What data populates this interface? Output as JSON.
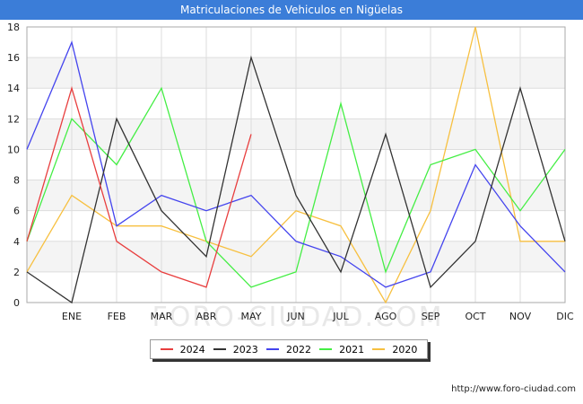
{
  "header": {
    "title": "Matriculaciones de Vehiculos en Nigüelas"
  },
  "watermark": "FORO-CIUDAD.COM",
  "source": "http://www.foro-ciudad.com",
  "chart_data": {
    "type": "line",
    "title": "Matriculaciones de Vehiculos en Nigüelas",
    "categories": [
      "",
      "ENE",
      "FEB",
      "MAR",
      "ABR",
      "MAY",
      "JUN",
      "JUL",
      "AGO",
      "SEP",
      "OCT",
      "NOV",
      "DIC"
    ],
    "ylim": [
      0,
      18
    ],
    "yticks": [
      0,
      2,
      4,
      6,
      8,
      10,
      12,
      14,
      16,
      18
    ],
    "grid": true,
    "legend_position": "bottom",
    "series": [
      {
        "name": "2024",
        "color": "#e83e3e",
        "values": [
          4,
          14,
          4,
          2,
          1,
          11,
          null,
          null,
          null,
          null,
          null,
          null,
          null
        ]
      },
      {
        "name": "2023",
        "color": "#333333",
        "values": [
          2,
          0,
          12,
          6,
          3,
          16,
          7,
          2,
          11,
          1,
          4,
          14,
          4
        ]
      },
      {
        "name": "2022",
        "color": "#4444ee",
        "values": [
          10,
          17,
          5,
          7,
          6,
          7,
          4,
          3,
          1,
          2,
          9,
          5,
          2
        ]
      },
      {
        "name": "2021",
        "color": "#44ee44",
        "values": [
          4,
          12,
          9,
          14,
          4,
          1,
          2,
          13,
          2,
          9,
          10,
          6,
          10
        ]
      },
      {
        "name": "2020",
        "color": "#f7c040",
        "values": [
          2,
          7,
          5,
          5,
          4,
          3,
          6,
          5,
          0,
          6,
          18,
          4,
          4
        ]
      }
    ]
  }
}
